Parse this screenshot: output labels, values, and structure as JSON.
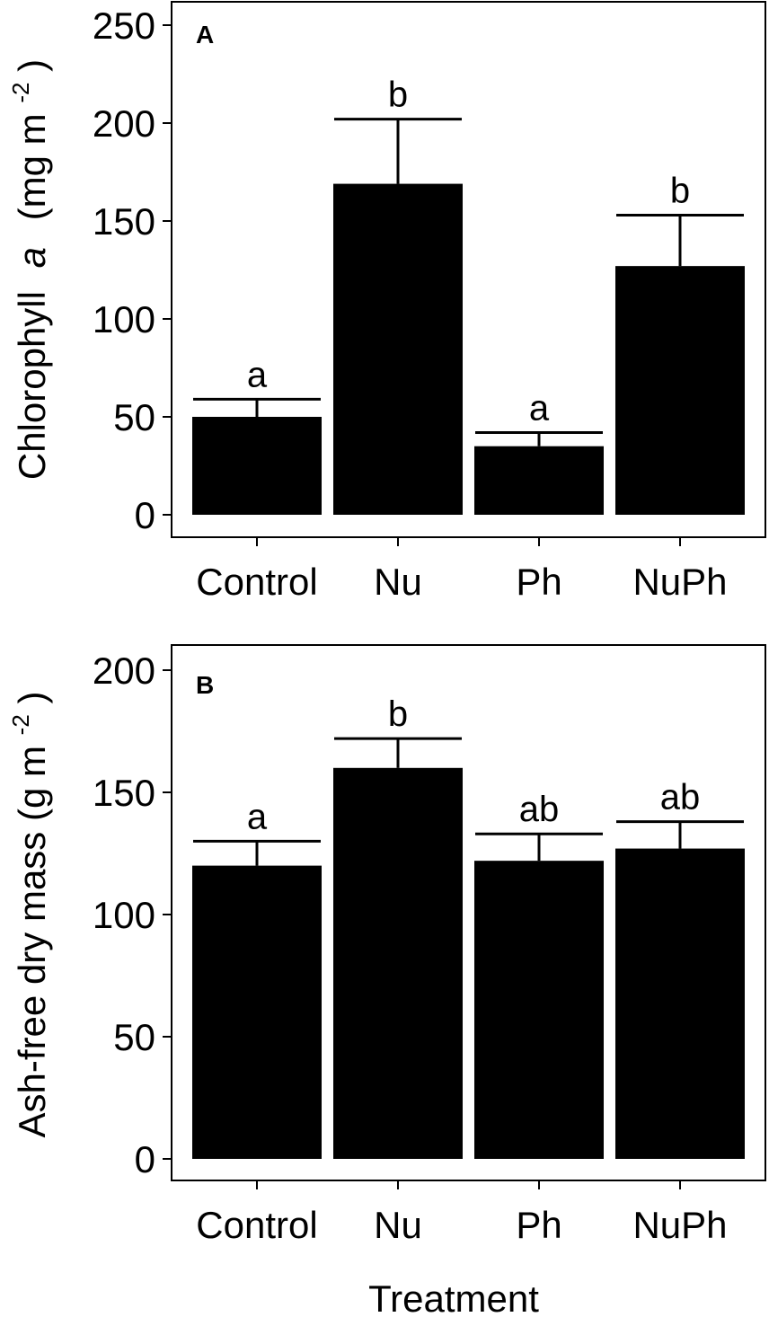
{
  "chart_data": [
    {
      "type": "bar",
      "panel": "A",
      "categories": [
        "Control",
        "Nu",
        "Ph",
        "NuPh"
      ],
      "values": [
        50,
        169,
        35,
        127
      ],
      "errors": [
        9,
        33,
        7,
        26
      ],
      "significance": [
        "a",
        "b",
        "a",
        "b"
      ],
      "yticks": [
        "0",
        "50",
        "100",
        "150",
        "200",
        "250"
      ],
      "ylim": [
        0,
        255
      ],
      "ylabel_parts": [
        "Chlorophyll",
        "a",
        "(mg m",
        "-2",
        ")"
      ],
      "xlabel": "",
      "grid": false,
      "legend": "none"
    },
    {
      "type": "bar",
      "panel": "B",
      "categories": [
        "Control",
        "Nu",
        "Ph",
        "NuPh"
      ],
      "values": [
        120,
        160,
        122,
        127
      ],
      "errors": [
        10,
        12,
        11,
        11
      ],
      "significance": [
        "a",
        "b",
        "ab",
        "ab"
      ],
      "yticks": [
        "0",
        "50",
        "100",
        "150",
        "200"
      ],
      "ylim": [
        0,
        210
      ],
      "ylabel_parts": [
        "Ash-free dry mass  (g m",
        "-2",
        ")"
      ],
      "xlabel": "Treatment",
      "grid": false,
      "legend": "none"
    }
  ]
}
